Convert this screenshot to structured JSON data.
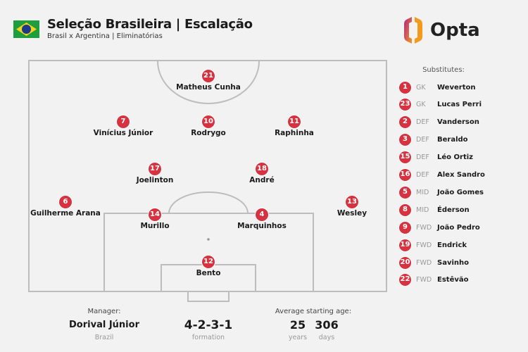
{
  "header": {
    "title": "Seleção Brasileira | Escalação",
    "subtitle": "Brasil x Argentina | Eliminatórias",
    "flag": "brazil-flag",
    "logo_text": "Opta"
  },
  "colors": {
    "badge": "#d6323f",
    "pitch_lines": "#bdbdbd",
    "background": "#f2f2f2"
  },
  "lineup": [
    {
      "number": "21",
      "name": "Matheus Cunha"
    },
    {
      "number": "7",
      "name": "Vinícius Júnior"
    },
    {
      "number": "10",
      "name": "Rodrygo"
    },
    {
      "number": "11",
      "name": "Raphinha"
    },
    {
      "number": "17",
      "name": "Joelinton"
    },
    {
      "number": "18",
      "name": "André"
    },
    {
      "number": "6",
      "name": "Guilherme Arana"
    },
    {
      "number": "14",
      "name": "Murillo"
    },
    {
      "number": "4",
      "name": "Marquinhos"
    },
    {
      "number": "13",
      "name": "Wesley"
    },
    {
      "number": "12",
      "name": "Bento"
    }
  ],
  "substitutes": {
    "title": "Substitutes:",
    "items": [
      {
        "number": "1",
        "pos": "GK",
        "name": "Weverton"
      },
      {
        "number": "23",
        "pos": "GK",
        "name": "Lucas Perri"
      },
      {
        "number": "2",
        "pos": "DEF",
        "name": "Vanderson"
      },
      {
        "number": "3",
        "pos": "DEF",
        "name": "Beraldo"
      },
      {
        "number": "15",
        "pos": "DEF",
        "name": "Léo Ortiz"
      },
      {
        "number": "16",
        "pos": "DEF",
        "name": "Alex Sandro"
      },
      {
        "number": "5",
        "pos": "MID",
        "name": "João Gomes"
      },
      {
        "number": "8",
        "pos": "MID",
        "name": "Éderson"
      },
      {
        "number": "9",
        "pos": "FWD",
        "name": "João Pedro"
      },
      {
        "number": "19",
        "pos": "FWD",
        "name": "Endrick"
      },
      {
        "number": "20",
        "pos": "FWD",
        "name": "Savinho"
      },
      {
        "number": "22",
        "pos": "FWD",
        "name": "Estêvão"
      }
    ]
  },
  "footer": {
    "manager_label": "Manager:",
    "manager": "Dorival Júnior",
    "manager_country": "Brazil",
    "formation": "4-2-3-1",
    "formation_label": "formation",
    "age_label": "Average starting age:",
    "age_years": "25",
    "years_label": "years",
    "age_days": "306",
    "days_label": "days"
  }
}
